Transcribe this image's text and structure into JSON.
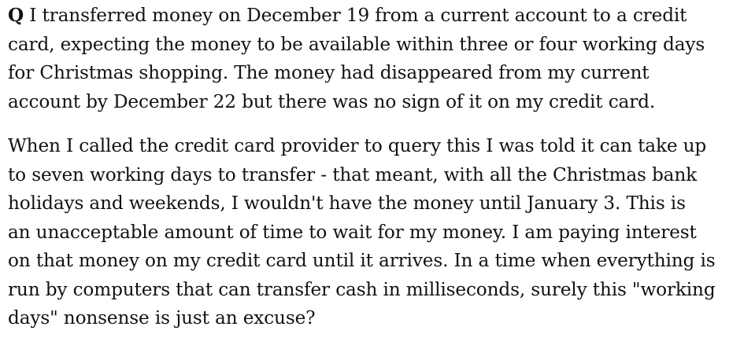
{
  "question": {
    "marker": "Q",
    "paragraphs": [
      {
        "lines": [
          " I transferred money on December 19 from a current account to a credit",
          "card, expecting the money to be available within three or four working days",
          "for Christmas shopping. The money had disappeared from my current",
          "account by December 22 but there was no sign of it on my credit card."
        ]
      },
      {
        "lines": [
          "When I called the credit card provider to query this I was told it can take up",
          "to seven working days to transfer - that meant, with all the Christmas bank",
          "holidays and weekends, I wouldn't have the money until January 3. This is",
          "an unacceptable amount of time to wait for my money. I am paying interest",
          "on that money on my credit card until it arrives. In a time when everything is",
          "run by computers that can transfer cash in milliseconds, surely this \"working",
          "days\" nonsense is just an excuse?"
        ]
      }
    ]
  }
}
